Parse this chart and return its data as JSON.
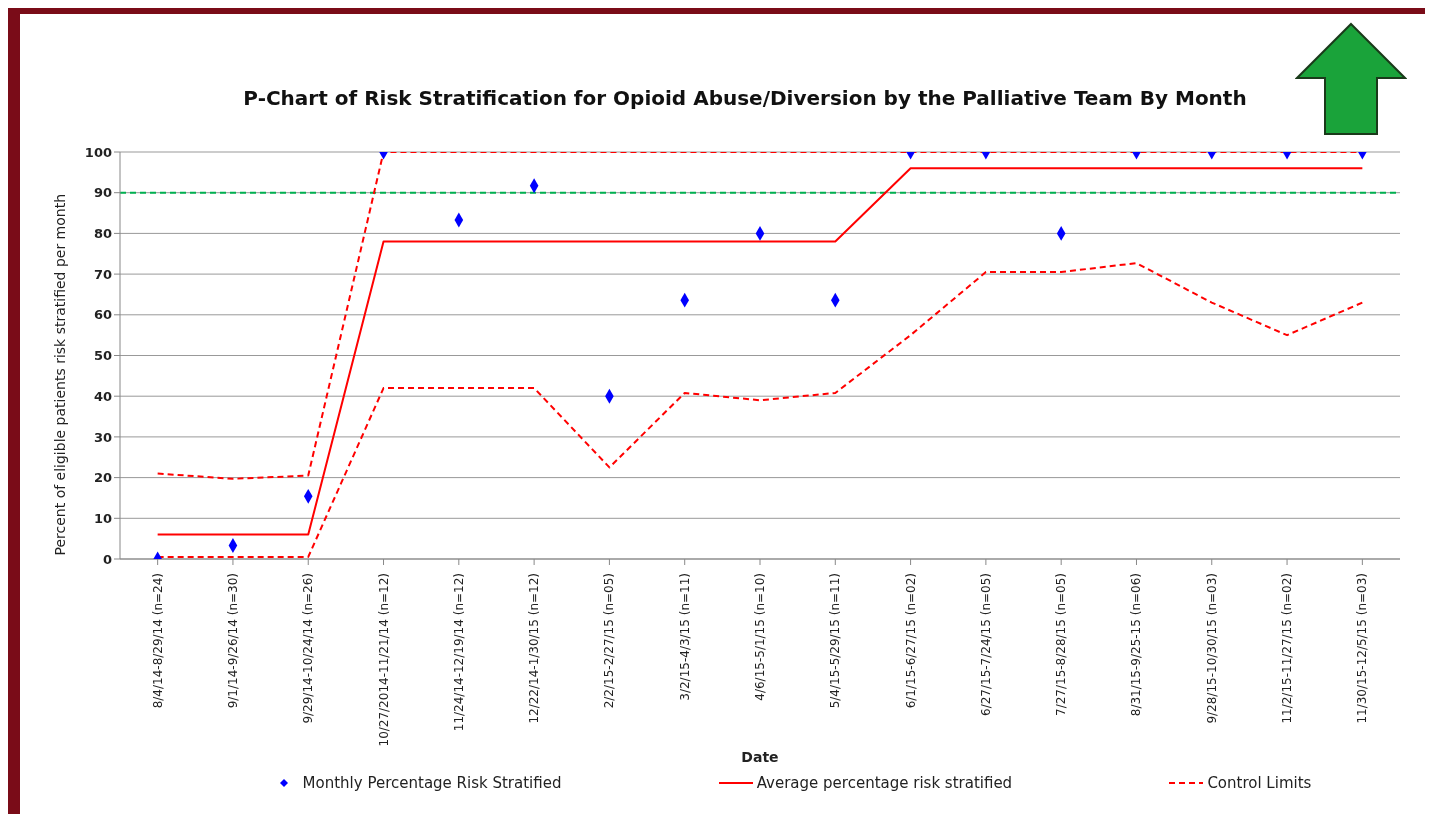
{
  "chart_data": {
    "type": "line",
    "title": "P-Chart of Risk Stratification for Opioid Abuse/Diversion by the Palliative Team By Month",
    "xlabel": "Date",
    "ylabel": "Percent of eligible patients risk stratified per month",
    "categories": [
      "8/4/14-8/29/14 (n=24)",
      "9/1/14-9/26/14 (n=30)",
      "9/29/14-10/24/14 (n=26)",
      "10/27/2014-11/21/14 (n=12)",
      "11/24/14-12/19/14 (n=12)",
      "12/22/14-1/30/15 (n=12)",
      "2/2/15-2/27/15 (n=05)",
      "3/2/15-4/3/15 (n=11)",
      "4/6/15-5/1/15 (n=10)",
      "5/4/15-5/29/15 (n=11)",
      "6/1/15-6/27/15 (n=02)",
      "6/27/15-7/24/15 (n=05)",
      "7/27/15-8/28/15 (n=05)",
      "8/31/15-9/25-15 (n=06)",
      "9/28/15-10/30/15 (n=03)",
      "11/2/15-11/27/15 (n=02)",
      "11/30/15-12/5/15 (n=03)"
    ],
    "series": [
      {
        "name": "Monthly Percentage Risk Stratified",
        "type": "scatter",
        "marker": "diamond",
        "color": "#0000ff",
        "values": [
          0,
          3.3,
          15.4,
          100,
          83.3,
          91.7,
          40,
          63.6,
          80,
          63.6,
          100,
          100,
          80,
          100,
          100,
          100,
          100
        ]
      },
      {
        "name": "Average percentage risk stratified",
        "line_style": "solid",
        "color": "#ff0000",
        "values": [
          6,
          6,
          6,
          78,
          78,
          78,
          78,
          78,
          78,
          78,
          96,
          96,
          96,
          96,
          96,
          96,
          96
        ]
      },
      {
        "name": "Control Limits",
        "line_style": "dashed",
        "color": "#ff0000",
        "values": [
          21,
          19.7,
          20.5,
          100,
          100,
          100,
          100,
          100,
          100,
          100,
          100,
          100,
          100,
          100,
          100,
          100,
          100
        ]
      },
      {
        "line_style": "dashed",
        "color": "#ff0000",
        "values": [
          0.5,
          0.5,
          0.5,
          42,
          42,
          42,
          22.5,
          40.8,
          39,
          40.8,
          55,
          70.5,
          70.5,
          72.7,
          63,
          55,
          63
        ]
      }
    ],
    "ylim": [
      0,
      100
    ],
    "yticks": [
      0,
      10,
      20,
      30,
      40,
      50,
      60,
      70,
      80,
      90,
      100
    ],
    "grid": "y",
    "legend": "bottom",
    "ref_lines": [
      {
        "axis": "y",
        "value": 90,
        "color": "#00b050",
        "line_style": "dashed"
      }
    ]
  }
}
